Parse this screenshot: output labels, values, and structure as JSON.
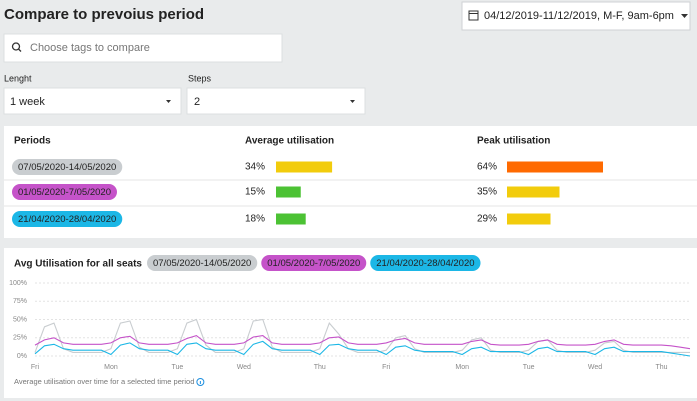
{
  "header": {
    "title": "Compare to prevoius period",
    "date_range": "04/12/2019-11/12/2019, M-F, 9am-6pm"
  },
  "search": {
    "placeholder": "Choose tags to compare"
  },
  "controls": [
    {
      "label": "Lenght",
      "value": "1 week"
    },
    {
      "label": "Steps",
      "value": "2"
    }
  ],
  "table": {
    "columns": [
      "Periods",
      "Average utilisation",
      "Peak utilisation"
    ],
    "rows": [
      {
        "period": "07/05/2020-14/05/2020",
        "color": "#c9cdd0",
        "average": 34,
        "average_label": "34%",
        "average_color": "#f2cc0c",
        "peak": 64,
        "peak_label": "64%",
        "peak_color": "#ff6a00"
      },
      {
        "period": "01/05/2020-7/05/2020",
        "color": "#c553c9",
        "average": 15,
        "average_label": "15%",
        "average_color": "#4cc234",
        "peak": 35,
        "peak_label": "35%",
        "peak_color": "#f2cc0c"
      },
      {
        "period": "21/04/2020-28/04/2020",
        "color": "#1cb7e6",
        "average": 18,
        "average_label": "18%",
        "average_color": "#4cc234",
        "peak": 29,
        "peak_label": "29%",
        "peak_color": "#f2cc0c"
      }
    ]
  },
  "chart_data": {
    "type": "line",
    "title": "Avg Utilisation for all seats",
    "categories": [
      "Fri",
      null,
      null,
      null,
      null,
      null,
      null,
      null,
      "Mon",
      null,
      null,
      null,
      null,
      null,
      null,
      "Tue",
      null,
      null,
      null,
      null,
      null,
      null,
      "Wed",
      null,
      null,
      null,
      null,
      null,
      null,
      null,
      "Thu",
      null,
      null,
      null,
      null,
      null,
      null,
      "Fri",
      null,
      null,
      null,
      null,
      null,
      null,
      null,
      "Mon",
      null,
      null,
      null,
      null,
      null,
      null,
      "Tue",
      null,
      null,
      null,
      null,
      null,
      null,
      "Wed",
      null,
      null,
      null,
      null,
      null,
      null,
      "Thu",
      null,
      null,
      null
    ],
    "series": [
      {
        "name": "07/05/2020-14/05/2020",
        "color": "#c9cdd0",
        "values": [
          5,
          40,
          45,
          10,
          5,
          5,
          5,
          5,
          10,
          45,
          48,
          12,
          5,
          5,
          5,
          10,
          45,
          50,
          15,
          5,
          5,
          5,
          10,
          48,
          50,
          12,
          5,
          5,
          5,
          5,
          10,
          45,
          30,
          10,
          5,
          5,
          5,
          8,
          25,
          28,
          10,
          5,
          5,
          5,
          5,
          8,
          22,
          25,
          8,
          5,
          5,
          5,
          8,
          20,
          22,
          8,
          5,
          5,
          5,
          8,
          18,
          20,
          8,
          5,
          5,
          5,
          5,
          5,
          5,
          5
        ]
      },
      {
        "name": "01/05/2020-7/05/2020",
        "color": "#c553c9",
        "values": [
          15,
          22,
          25,
          18,
          16,
          16,
          16,
          16,
          18,
          25,
          27,
          18,
          16,
          16,
          16,
          18,
          24,
          28,
          18,
          16,
          16,
          16,
          18,
          26,
          28,
          18,
          16,
          16,
          16,
          16,
          18,
          25,
          26,
          18,
          16,
          16,
          16,
          18,
          22,
          24,
          18,
          16,
          16,
          16,
          16,
          16,
          20,
          22,
          16,
          15,
          15,
          15,
          16,
          20,
          22,
          16,
          15,
          15,
          15,
          16,
          20,
          22,
          16,
          15,
          15,
          15,
          15,
          14,
          12,
          10
        ]
      },
      {
        "name": "21/04/2020-28/04/2020",
        "color": "#1cb7e6",
        "values": [
          3,
          14,
          16,
          10,
          8,
          8,
          8,
          8,
          2,
          15,
          18,
          10,
          8,
          8,
          8,
          2,
          16,
          18,
          10,
          8,
          8,
          8,
          2,
          16,
          20,
          10,
          8,
          8,
          8,
          8,
          2,
          15,
          16,
          10,
          8,
          8,
          8,
          2,
          12,
          14,
          8,
          6,
          6,
          6,
          6,
          2,
          10,
          12,
          6,
          6,
          6,
          6,
          2,
          10,
          12,
          6,
          6,
          6,
          6,
          2,
          10,
          12,
          6,
          6,
          6,
          6,
          6,
          4,
          2,
          0
        ]
      }
    ],
    "ylim": [
      0,
      100
    ],
    "yticks": [
      {
        "value": 0,
        "label": "0%"
      },
      {
        "value": 25,
        "label": "25%"
      },
      {
        "value": 50,
        "label": "50%"
      },
      {
        "value": 75,
        "label": "75%"
      },
      {
        "value": 100,
        "label": "100%"
      }
    ],
    "grid": true,
    "note": "Average utilisation over time for a selected time period"
  }
}
